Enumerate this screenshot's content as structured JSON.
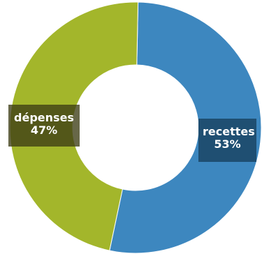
{
  "chart_data": {
    "type": "pie",
    "donut": true,
    "slices": [
      {
        "label": "recettes",
        "value": 53,
        "value_label": "53%",
        "color": "#3d87bf"
      },
      {
        "label": "dépenses",
        "value": 47,
        "value_label": "47%",
        "color": "#a3b62b"
      }
    ]
  }
}
